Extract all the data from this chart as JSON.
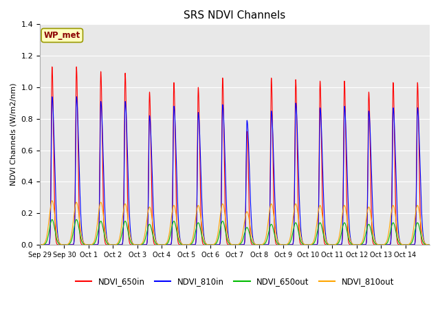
{
  "title": "SRS NDVI Channels",
  "ylabel": "NDVI Channels (W/m2/nm)",
  "legend_label": "WP_met",
  "line_colors": {
    "NDVI_650in": "#FF0000",
    "NDVI_810in": "#0000FF",
    "NDVI_650out": "#00BB00",
    "NDVI_810out": "#FFA500"
  },
  "legend_entries": [
    "NDVI_650in",
    "NDVI_810in",
    "NDVI_650out",
    "NDVI_810out"
  ],
  "xtick_labels": [
    "Sep 29",
    "Sep 30",
    "Oct 1",
    "Oct 2",
    "Oct 3",
    "Oct 4",
    "Oct 5",
    "Oct 6",
    "Oct 7",
    "Oct 8",
    "Oct 9",
    "Oct 10",
    "Oct 11",
    "Oct 12",
    "Oct 13",
    "Oct 14"
  ],
  "ylim": [
    0,
    1.4
  ],
  "peaks_650in": [
    1.13,
    1.13,
    1.1,
    1.09,
    0.97,
    1.03,
    1.0,
    1.06,
    0.72,
    1.06,
    1.05,
    1.04,
    1.04,
    0.97,
    1.03,
    1.03
  ],
  "peaks_810in": [
    0.94,
    0.94,
    0.91,
    0.91,
    0.82,
    0.88,
    0.84,
    0.89,
    0.79,
    0.85,
    0.9,
    0.87,
    0.88,
    0.85,
    0.87,
    0.87
  ],
  "peaks_650out": [
    0.16,
    0.16,
    0.15,
    0.15,
    0.13,
    0.15,
    0.14,
    0.15,
    0.11,
    0.13,
    0.14,
    0.14,
    0.14,
    0.13,
    0.14,
    0.14
  ],
  "peaks_810out": [
    0.28,
    0.27,
    0.27,
    0.26,
    0.24,
    0.25,
    0.25,
    0.26,
    0.21,
    0.26,
    0.26,
    0.25,
    0.25,
    0.24,
    0.25,
    0.25
  ],
  "num_days": 16,
  "points_per_day": 200,
  "fig_bg_color": "#ffffff",
  "plot_bg_color": "#e8e8e8"
}
